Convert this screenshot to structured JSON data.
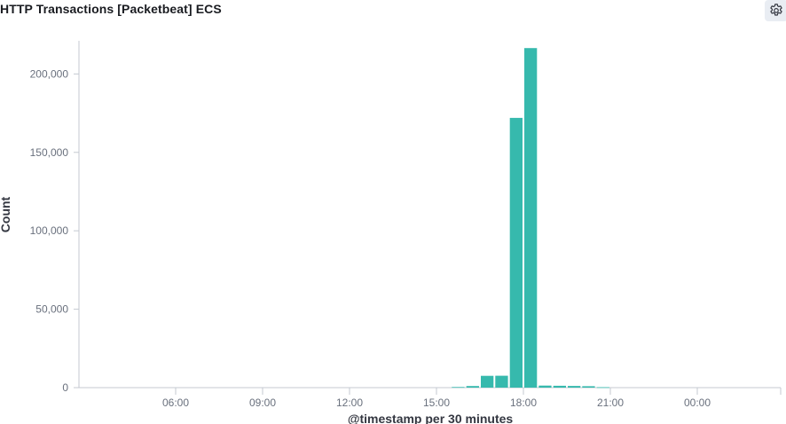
{
  "panel": {
    "title": "HTTP Transactions [Packetbeat] ECS",
    "settings_icon": "gear-icon"
  },
  "colors": {
    "bar": "#36b9ad",
    "axis": "#c4c9d1",
    "tick_label": "#69707d",
    "axis_title": "#343741"
  },
  "chart_data": {
    "type": "bar",
    "title": "",
    "xlabel": "@timestamp per 30 minutes",
    "ylabel": "Count",
    "x_ticks": [
      "06:00",
      "09:00",
      "12:00",
      "15:00",
      "18:00",
      "21:00",
      "00:00"
    ],
    "y_ticks": [
      "0",
      "50,000",
      "100,000",
      "150,000",
      "200,000"
    ],
    "ylim": [
      0,
      220000
    ],
    "x_range": [
      "03:30",
      "03:00 (+1 day)"
    ],
    "grid": false,
    "series": [
      {
        "values": [
          {
            "x": "15:30",
            "y": 400
          },
          {
            "x": "16:00",
            "y": 1000
          },
          {
            "x": "16:30",
            "y": 7500
          },
          {
            "x": "17:00",
            "y": 7600
          },
          {
            "x": "17:30",
            "y": 172000
          },
          {
            "x": "18:00",
            "y": 216500
          },
          {
            "x": "18:30",
            "y": 1300
          },
          {
            "x": "19:00",
            "y": 1200
          },
          {
            "x": "19:30",
            "y": 1100
          },
          {
            "x": "20:00",
            "y": 900
          },
          {
            "x": "20:30",
            "y": 300
          }
        ]
      }
    ]
  }
}
